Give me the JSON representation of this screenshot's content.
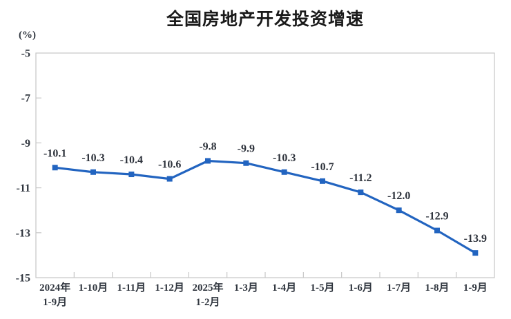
{
  "chart_data": {
    "type": "line",
    "title": "全国房地产开发投资增速",
    "ylabel": "(%)",
    "categories": [
      [
        "2024年",
        "1-9月"
      ],
      [
        "1-10月"
      ],
      [
        "1-11月"
      ],
      [
        "1-12月"
      ],
      [
        "2025年",
        "1-2月"
      ],
      [
        "1-3月"
      ],
      [
        "1-4月"
      ],
      [
        "1-5月"
      ],
      [
        "1-6月"
      ],
      [
        "1-7月"
      ],
      [
        "1-8月"
      ],
      [
        "1-9月"
      ]
    ],
    "values": [
      -10.1,
      -10.3,
      -10.4,
      -10.6,
      -9.8,
      -9.9,
      -10.3,
      -10.7,
      -11.2,
      -12.0,
      -12.9,
      -13.9
    ],
    "data_labels": [
      "-10.1",
      "-10.3",
      "-10.4",
      "-10.6",
      "-9.8",
      "-9.9",
      "-10.3",
      "-10.7",
      "-11.2",
      "-12.0",
      "-12.9",
      "-13.9"
    ],
    "ylim": [
      -15,
      -5
    ],
    "yticks": [
      -5,
      -7,
      -9,
      -11,
      -13,
      -15
    ],
    "grid": false,
    "legend": "none",
    "marker": "square",
    "colors": {
      "line": "#2264C0",
      "marker": "#2264C0",
      "axis": "#c6c6c6",
      "tick_label": "#30363f",
      "data_label": "#2e333c",
      "title": "#1a1a1a"
    }
  }
}
